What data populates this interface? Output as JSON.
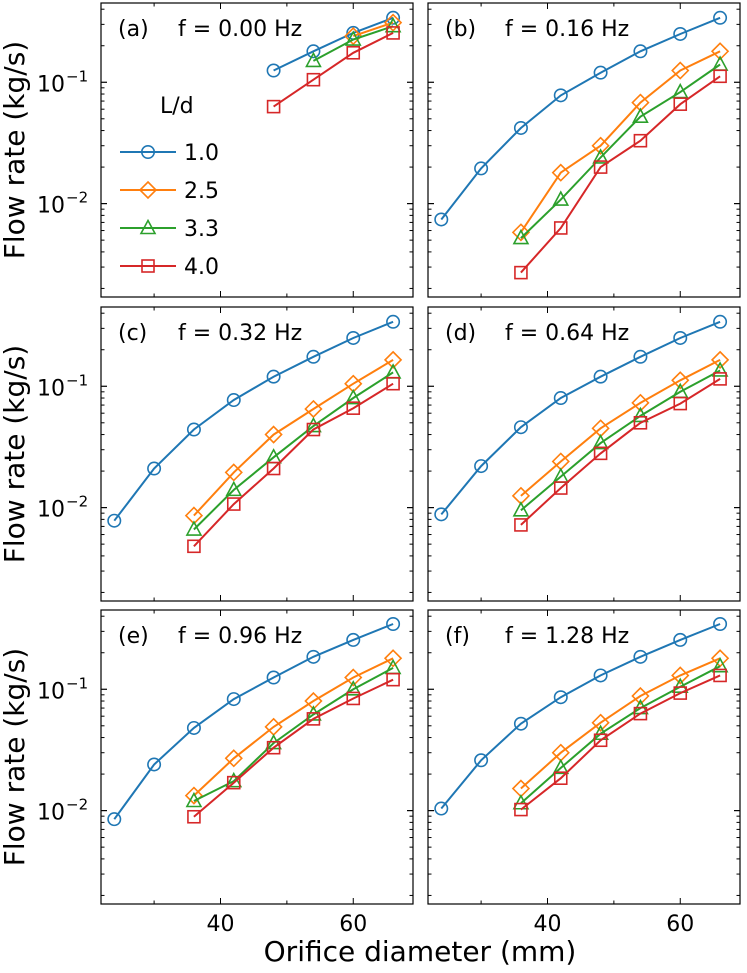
{
  "chart_data": {
    "type": "line",
    "xlabel": "Orifice diameter (mm)",
    "ylabel": "Flow rate (kg/s)",
    "yscale": "log",
    "xlim": [
      22,
      69
    ],
    "ylim": [
      0.0017,
      0.45
    ],
    "xticks": [
      40,
      60
    ],
    "yticks": [
      {
        "value": 0.01,
        "base": "10",
        "exp": "−2"
      },
      {
        "value": 0.1,
        "base": "10",
        "exp": "−1"
      }
    ],
    "legend": {
      "title": "L/d",
      "position": "left, inside panel (a)",
      "entries": [
        "1.0",
        "2.5",
        "3.3",
        "4.0"
      ]
    },
    "series_styles": [
      {
        "name": "1.0",
        "color": "#1f77b4",
        "marker": "circle"
      },
      {
        "name": "2.5",
        "color": "#ff7f0e",
        "marker": "diamond"
      },
      {
        "name": "3.3",
        "color": "#2ca02c",
        "marker": "triangle"
      },
      {
        "name": "4.0",
        "color": "#d62728",
        "marker": "square"
      }
    ],
    "panels": [
      {
        "label": "(a)",
        "title": "f = 0.00 Hz",
        "series": [
          {
            "name": "1.0",
            "x": [
              48,
              54,
              60,
              66
            ],
            "values": [
              0.125,
              0.18,
              0.255,
              0.34
            ]
          },
          {
            "name": "2.5",
            "x": [
              60,
              66
            ],
            "values": [
              0.24,
              0.31
            ]
          },
          {
            "name": "3.3",
            "x": [
              54,
              60,
              66
            ],
            "values": [
              0.15,
              0.225,
              0.29
            ]
          },
          {
            "name": "4.0",
            "x": [
              48,
              54,
              60,
              66
            ],
            "values": [
              0.063,
              0.105,
              0.175,
              0.255
            ]
          }
        ]
      },
      {
        "label": "(b)",
        "title": "f = 0.16 Hz",
        "series": [
          {
            "name": "1.0",
            "x": [
              24,
              30,
              36,
              42,
              48,
              54,
              60,
              66
            ],
            "values": [
              0.0074,
              0.0195,
              0.042,
              0.078,
              0.12,
              0.18,
              0.25,
              0.34
            ]
          },
          {
            "name": "2.5",
            "x": [
              36,
              42,
              48,
              54,
              60,
              66
            ],
            "values": [
              0.0058,
              0.018,
              0.03,
              0.068,
              0.125,
              0.18
            ]
          },
          {
            "name": "3.3",
            "x": [
              36,
              42,
              48,
              54,
              60,
              66
            ],
            "values": [
              0.0052,
              0.0108,
              0.024,
              0.052,
              0.083,
              0.14
            ]
          },
          {
            "name": "4.0",
            "x": [
              36,
              42,
              48,
              54,
              60,
              66
            ],
            "values": [
              0.0027,
              0.0063,
              0.02,
              0.033,
              0.066,
              0.112
            ]
          }
        ]
      },
      {
        "label": "(c)",
        "title": "f = 0.32 Hz",
        "series": [
          {
            "name": "1.0",
            "x": [
              24,
              30,
              36,
              42,
              48,
              54,
              60,
              66
            ],
            "values": [
              0.0078,
              0.021,
              0.044,
              0.077,
              0.12,
              0.175,
              0.25,
              0.34
            ]
          },
          {
            "name": "2.5",
            "x": [
              36,
              42,
              48,
              54,
              60,
              66
            ],
            "values": [
              0.0086,
              0.0195,
              0.04,
              0.065,
              0.105,
              0.165
            ]
          },
          {
            "name": "3.3",
            "x": [
              36,
              42,
              48,
              54,
              60,
              66
            ],
            "values": [
              0.0066,
              0.014,
              0.026,
              0.047,
              0.08,
              0.13
            ]
          },
          {
            "name": "4.0",
            "x": [
              36,
              42,
              48,
              54,
              60,
              66
            ],
            "values": [
              0.0048,
              0.0107,
              0.021,
              0.044,
              0.066,
              0.105
            ]
          }
        ]
      },
      {
        "label": "(d)",
        "title": "f = 0.64 Hz",
        "series": [
          {
            "name": "1.0",
            "x": [
              24,
              30,
              36,
              42,
              48,
              54,
              60,
              66
            ],
            "values": [
              0.0088,
              0.022,
              0.046,
              0.08,
              0.12,
              0.175,
              0.25,
              0.34
            ]
          },
          {
            "name": "2.5",
            "x": [
              36,
              42,
              48,
              54,
              60,
              66
            ],
            "values": [
              0.0125,
              0.024,
              0.045,
              0.073,
              0.112,
              0.165
            ]
          },
          {
            "name": "3.3",
            "x": [
              36,
              42,
              48,
              54,
              60,
              66
            ],
            "values": [
              0.0095,
              0.018,
              0.034,
              0.057,
              0.09,
              0.135
            ]
          },
          {
            "name": "4.0",
            "x": [
              36,
              42,
              48,
              54,
              60,
              66
            ],
            "values": [
              0.0072,
              0.0145,
              0.028,
              0.05,
              0.072,
              0.115
            ]
          }
        ]
      },
      {
        "label": "(e)",
        "title": "f = 0.96 Hz",
        "series": [
          {
            "name": "1.0",
            "x": [
              24,
              30,
              36,
              42,
              48,
              54,
              60,
              66
            ],
            "values": [
              0.0085,
              0.024,
              0.048,
              0.083,
              0.125,
              0.185,
              0.255,
              0.345
            ]
          },
          {
            "name": "2.5",
            "x": [
              36,
              42,
              48,
              54,
              60,
              66
            ],
            "values": [
              0.0133,
              0.027,
              0.049,
              0.08,
              0.125,
              0.18
            ]
          },
          {
            "name": "3.3",
            "x": [
              36,
              42,
              48,
              54,
              60,
              66
            ],
            "values": [
              0.012,
              0.0175,
              0.036,
              0.062,
              0.1,
              0.15
            ]
          },
          {
            "name": "4.0",
            "x": [
              36,
              42,
              48,
              54,
              60,
              66
            ],
            "values": [
              0.0089,
              0.017,
              0.033,
              0.057,
              0.084,
              0.12
            ]
          }
        ]
      },
      {
        "label": "(f)",
        "title": "f = 1.28 Hz",
        "series": [
          {
            "name": "1.0",
            "x": [
              24,
              30,
              36,
              42,
              48,
              54,
              60,
              66
            ],
            "values": [
              0.0104,
              0.026,
              0.052,
              0.086,
              0.13,
              0.185,
              0.255,
              0.345
            ]
          },
          {
            "name": "2.5",
            "x": [
              36,
              42,
              48,
              54,
              60,
              66
            ],
            "values": [
              0.0152,
              0.03,
              0.053,
              0.088,
              0.13,
              0.18
            ]
          },
          {
            "name": "3.3",
            "x": [
              36,
              42,
              48,
              54,
              60,
              66
            ],
            "values": [
              0.0115,
              0.0225,
              0.043,
              0.07,
              0.105,
              0.155
            ]
          },
          {
            "name": "4.0",
            "x": [
              36,
              42,
              48,
              54,
              60,
              66
            ],
            "values": [
              0.0102,
              0.0185,
              0.038,
              0.063,
              0.093,
              0.13
            ]
          }
        ]
      }
    ]
  }
}
